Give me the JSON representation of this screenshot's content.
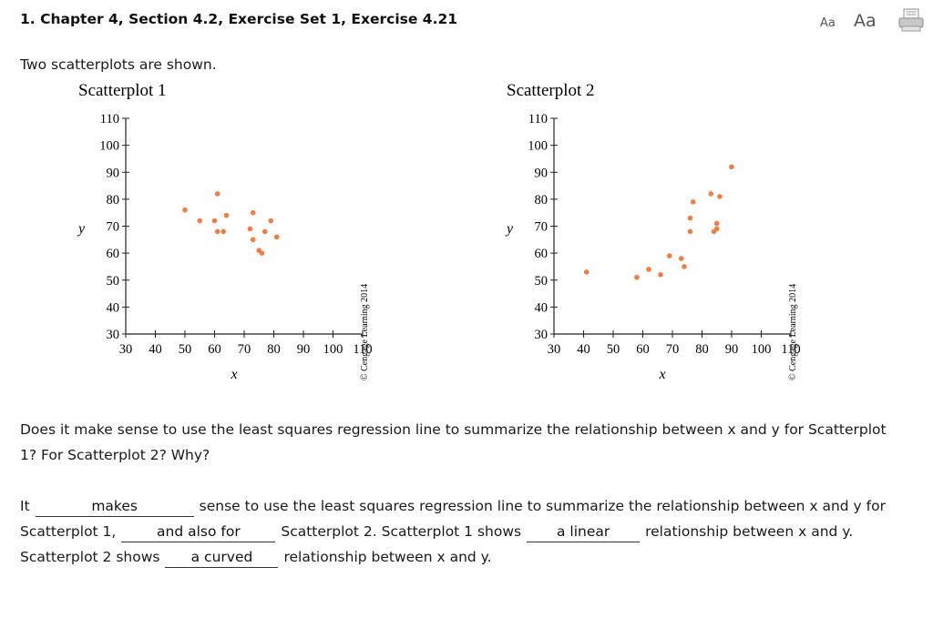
{
  "header": {
    "title": "1. Chapter 4, Section 4.2, Exercise Set 1, Exercise 4.21",
    "font_small_label": "Aa",
    "font_large_label": "Aa"
  },
  "intro": "Two scatterplots are shown.",
  "credit": "© Cengage Learning 2014",
  "chart_data": [
    {
      "type": "scatter",
      "title": "Scatterplot 1",
      "xlabel": "x",
      "ylabel": "y",
      "xlim": [
        30,
        110
      ],
      "ylim": [
        30,
        110
      ],
      "xticks": [
        30,
        40,
        50,
        60,
        70,
        80,
        90,
        100,
        110
      ],
      "yticks": [
        30,
        40,
        50,
        60,
        70,
        80,
        90,
        100,
        110
      ],
      "color": "#ee7d46",
      "points": [
        [
          50,
          76
        ],
        [
          55,
          72
        ],
        [
          60,
          72
        ],
        [
          61,
          82
        ],
        [
          61,
          68
        ],
        [
          63,
          68
        ],
        [
          64,
          74
        ],
        [
          72,
          69
        ],
        [
          73,
          75
        ],
        [
          73,
          65
        ],
        [
          75,
          61
        ],
        [
          76,
          60
        ],
        [
          77,
          68
        ],
        [
          79,
          72
        ],
        [
          81,
          66
        ]
      ]
    },
    {
      "type": "scatter",
      "title": "Scatterplot 2",
      "xlabel": "x",
      "ylabel": "y",
      "xlim": [
        30,
        110
      ],
      "ylim": [
        30,
        110
      ],
      "xticks": [
        30,
        40,
        50,
        60,
        70,
        80,
        90,
        100,
        110
      ],
      "yticks": [
        30,
        40,
        50,
        60,
        70,
        80,
        90,
        100,
        110
      ],
      "color": "#ee7d46",
      "points": [
        [
          41,
          53
        ],
        [
          58,
          51
        ],
        [
          62,
          54
        ],
        [
          66,
          52
        ],
        [
          69,
          59
        ],
        [
          73,
          58
        ],
        [
          74,
          55
        ],
        [
          76,
          73
        ],
        [
          76,
          68
        ],
        [
          77,
          79
        ],
        [
          83,
          82
        ],
        [
          84,
          68
        ],
        [
          85,
          69
        ],
        [
          85,
          71
        ],
        [
          86,
          81
        ],
        [
          90,
          92
        ]
      ]
    }
  ],
  "question": "Does it make sense to use the least squares regression line to summarize the relationship between x and y for Scatterplot 1? For Scatterplot 2? Why?",
  "answer": {
    "seg1": "It",
    "blank1": "makes",
    "seg2": "sense to use the least squares regression line to summarize the relationship between x and y for Scatterplot 1,",
    "blank2": "and also for",
    "seg3": "Scatterplot 2. Scatterplot 1 shows",
    "blank3": "a linear",
    "seg4": "relationship between x and y. Scatterplot 2 shows",
    "blank4": "a curved",
    "seg5": "relationship between x and y."
  }
}
